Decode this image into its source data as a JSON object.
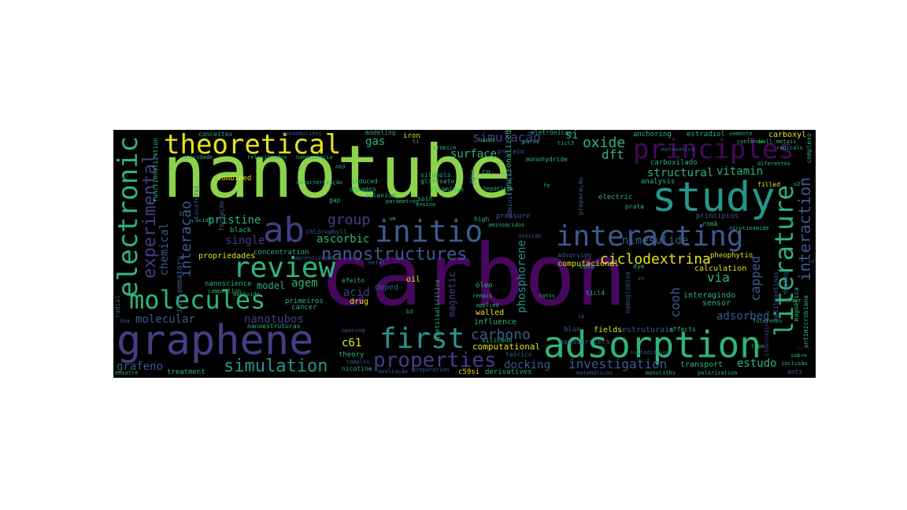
{
  "colors": {
    "background": "#000000",
    "canvas": "#ffffff",
    "lime": "#8cd24b",
    "purple": "#46085c",
    "indigo": "#423f85",
    "teal": "#25968b",
    "green": "#2fb47c",
    "blue": "#3b5b8c",
    "yellow": "#e3e419"
  },
  "words": {
    "nanotube": "nanotube",
    "carbon": "carbon",
    "graphene": "graphene",
    "adsorption": "adsorption",
    "study": "study",
    "ab": "ab",
    "initio": "initio",
    "interacting": "interacting",
    "theoretical": "theoretical",
    "principles": "principles",
    "literature": "literature",
    "electronic": "electronic",
    "review": "review",
    "molecules": "molecules",
    "first": "first",
    "properties": "properties",
    "nanostructures": "nanostructures",
    "experimental": "experimental",
    "interacao": "interação",
    "interaction": "interaction",
    "simulation": "simulation",
    "ciclodextrina": "ciclodextrina",
    "group": "group",
    "simulacao": "simulação",
    "oxide": "oxide",
    "dft": "dft",
    "structural": "structural",
    "vitamin": "vitamin",
    "carbono": "carbono",
    "c61": "c61",
    "investigation": "investigation",
    "docking": "docking",
    "estudo": "estudo",
    "adsorbed": "adsorbed",
    "grafeno": "grafeno",
    "molecular": "molecular",
    "chemical": "chemical",
    "pristine": "pristine",
    "single": "single",
    "ascorbic": "ascorbic",
    "nimesulide": "nimesulide",
    "surface": "surface",
    "gas": "gas",
    "si": "si",
    "via": "via",
    "cooh": "cooh",
    "capped": "capped",
    "phosphorene": "phosphorene",
    "magnetic": "magnetic",
    "nanotubos": "nanotubos",
    "acid": "acid",
    "model": "model",
    "agem": "agem",
    "computational": "computational",
    "computacional": "computacional",
    "walled": "walled",
    "influence": "influence",
    "drug": "drug",
    "doped": "doped",
    "oil": "oil",
    "fields": "fields",
    "estruturais": "estruturais",
    "transport": "transport",
    "interagindo": "interagindo",
    "sensor": "sensor",
    "calculation": "calculation",
    "pheophytin": "pheophytin",
    "propriedades": "propriedades",
    "concentration": "concentration",
    "inflammatory": "inflammatory",
    "black": "black",
    "combined": "combined",
    "nanoscience": "nanoscience",
    "primeiros": "primeiros",
    "cancer": "cancer",
    "theory": "theory",
    "treatment": "treatment",
    "nicotine": "nicotine",
    "c59si": "c59si",
    "derivatives": "derivatives",
    "electric": "electric",
    "anchoring": "anchoring",
    "estradiol": "estradiol",
    "carboxyl": "carboxyl",
    "carboxilado": "carboxilado",
    "analysis": "analysis",
    "conceitos": "conceitos",
    "relacionados": "relacionados",
    "nanociencia": "nanociência",
    "no3": "no3",
    "iron": "iron",
    "modeling": "modeling",
    "functionalized": "functionalized",
    "monohydride": "monohydride",
    "eletronicas": "eletrônicas",
    "ticl3": "ticl3",
    "protein": "protein",
    "bases": "bases",
    "puros": "puros",
    "silanols": "silanols",
    "glifosato": "glifosato",
    "vitaminas": "vitaminas",
    "induced": "induced",
    "dopados": "dopados",
    "spin": "spin",
    "ensino": "ensino",
    "hepaticos": "hepáticos",
    "parametros": "parâmetros",
    "selenium": "selenium",
    "high": "high",
    "pressure": "pressure",
    "aminoacidos": "aminoácidos",
    "prata": "prata",
    "principios": "princípios",
    "roma": "romã",
    "nicotinamide": "nicotinamide",
    "filled": "filled",
    "o2": "o2",
    "semente": "semente",
    "contendo": "contendo",
    "metais": "metais",
    "radicals": "radicals",
    "diferentes": "diferentes",
    "complexo": "complexo",
    "atividade": "atividade",
    "caracterizacao": "caracterização",
    "acido": "ácido",
    "chlorophyll": "chlorophyll",
    "aprendizagem": "aprendizagem",
    "gap": "gap",
    "metal": "metal",
    "efeito": "efeito",
    "monoxido": "monóxido",
    "compaction": "compaction",
    "radial": "radial",
    "nanoestruturas": "nanoestruturas",
    "enxofre": "enxofre",
    "opening": "opening",
    "complex": "complex",
    "avaliacao": "avaliação",
    "preparation": "preparation",
    "siliceno": "siliceno",
    "b3": "b3",
    "oleo": "óleo",
    "renais": "renais",
    "applied": "applied",
    "ratos": "ratos",
    "ticl4": "ticl4",
    "blue": "blue",
    "onto": "onto",
    "dye": "dye",
    "adsorvido": "adsorvido",
    "armchair": "armchair",
    "fulerenos": "fulerenos",
    "effects": "effects",
    "tipo": "tipo",
    "inclusao": "inclusão",
    "sobre": "sobre",
    "anti": "anti",
    "monoliths": "monoliths",
    "polarization": "polarization",
    "matematicos": "matemáticos",
    "teorico": "teórico",
    "um": "um",
    "doping": "doping",
    "magnetica": "magnética",
    "antimicrobiana": "antimicrobiana",
    "hemoglobina": "hemoglobina",
    "zidovudina": "zidovudina",
    "acetilsalicilico": "acetilsalicílico",
    "co": "co",
    "fe": "fe",
    "agua": "água",
    "administracao": "administração",
    "preparacao": "preparação",
    "ip": "ip",
    "tocoferol": "tocoferol",
    "formacao": "formação",
    "nanoemulsoes": "nanoemulsões",
    "ti": "ti",
    "cromico": "crômico",
    "nanocarriers": "nanocarriers",
    "sulfadiazina": "sulfadiazina",
    "matematica": "matemática",
    "metilxantinas": "metilxantinas",
    "dioxido": "dióxido",
    "functionalization": "functionalization",
    "dna": "dna",
    "wall": "wall",
    "zn": "zn",
    "sol": "sol",
    "oxid": "oxid"
  }
}
